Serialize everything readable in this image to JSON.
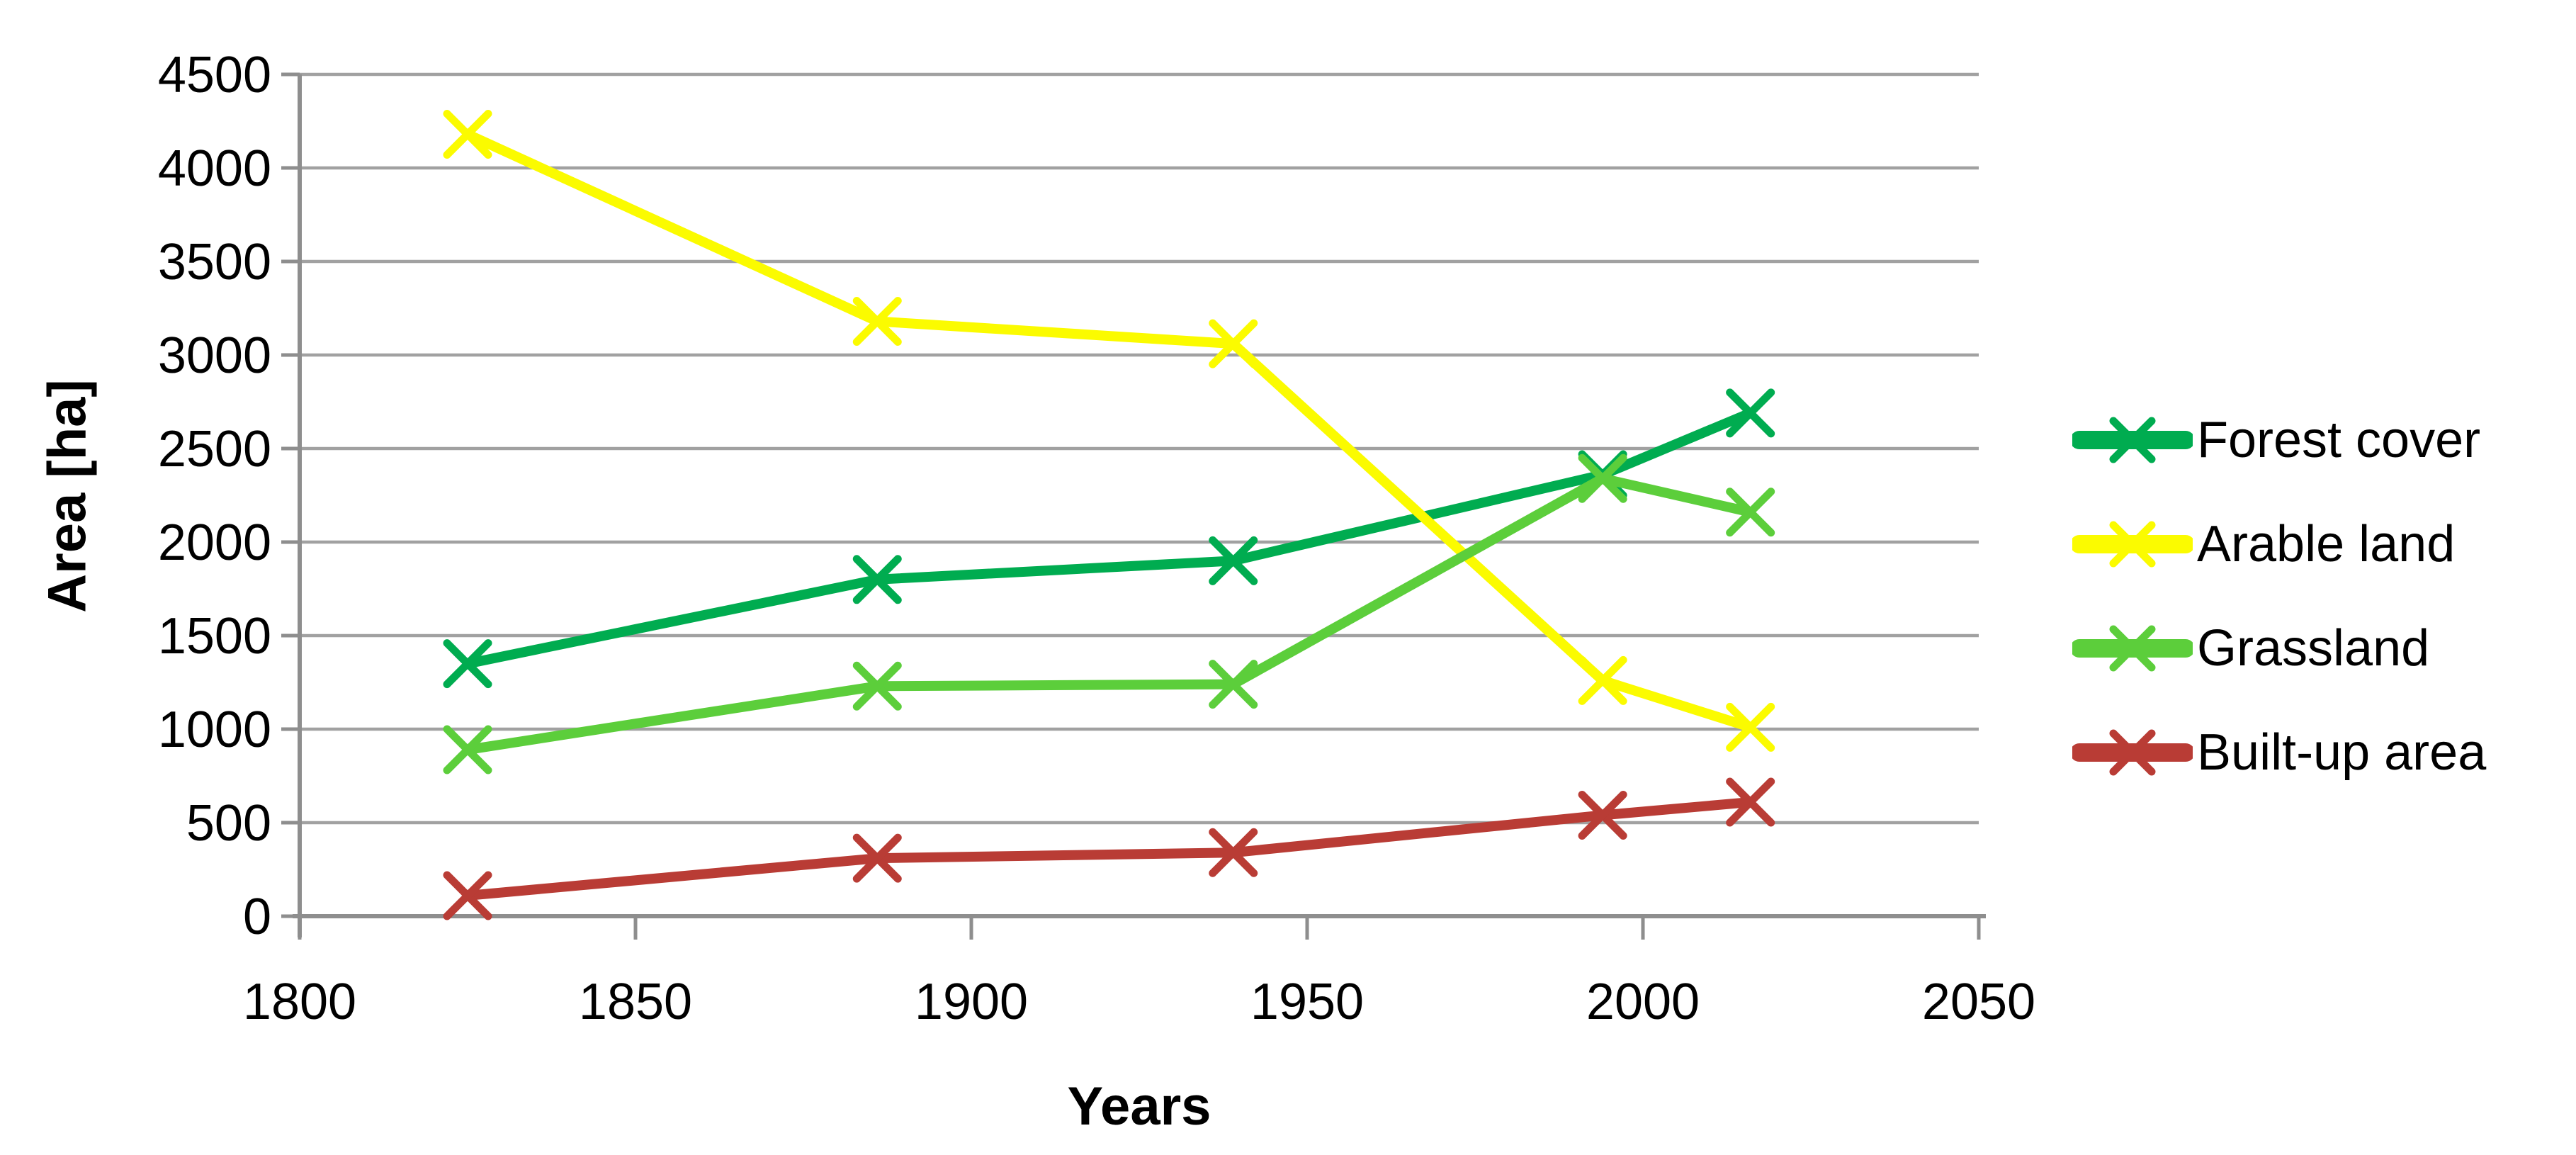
{
  "chart_data": {
    "type": "line",
    "title": "",
    "xlabel": "Years",
    "ylabel": "Area [ha]",
    "xlim": [
      1800,
      2050
    ],
    "ylim": [
      0,
      4500
    ],
    "x_ticks": [
      1800,
      1850,
      1900,
      1950,
      2000,
      2050
    ],
    "y_ticks": [
      0,
      500,
      1000,
      1500,
      2000,
      2500,
      3000,
      3500,
      4000,
      4500
    ],
    "grid": "horizontal",
    "legend_position": "right",
    "marker": "x",
    "x": [
      1825,
      1886,
      1939,
      1994,
      2016
    ],
    "series": [
      {
        "name": "Forest cover",
        "color": "#00AC50",
        "values": [
          1350,
          1800,
          1900,
          2360,
          2690
        ]
      },
      {
        "name": "Arable land",
        "color": "#FBFB00",
        "values": [
          4180,
          3180,
          3060,
          1260,
          1010
        ]
      },
      {
        "name": "Grassland",
        "color": "#5CCE3B",
        "values": [
          890,
          1230,
          1240,
          2340,
          2160
        ]
      },
      {
        "name": "Built-up area",
        "color": "#B93C35",
        "values": [
          110,
          310,
          340,
          540,
          610
        ]
      }
    ]
  },
  "colors": {
    "background": "#FFFFFF",
    "gridline": "#A1A1A1",
    "axis": "#8E8E8E",
    "text": "#000000"
  }
}
